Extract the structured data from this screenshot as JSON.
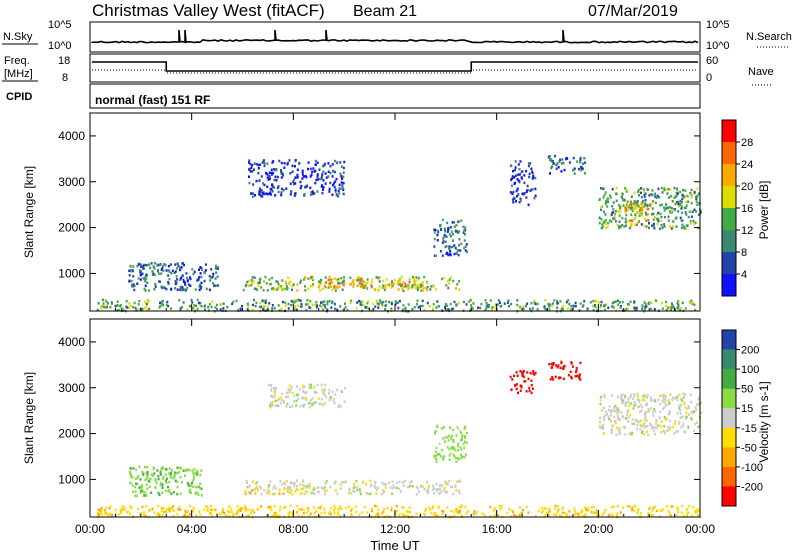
{
  "header": {
    "station": "Christmas Valley West (fitACF)",
    "beam": "Beam 21",
    "date": "07/Mar/2019"
  },
  "top_panels": {
    "nsky_label": "N.Sky",
    "nsky_ticks": [
      "10^5",
      "10^0"
    ],
    "nsearch_label": "N.Search",
    "nsearch_ticks": [
      "10^5",
      "10^0"
    ],
    "freq_label_1": "Freq.",
    "freq_label_2": "[MHz]",
    "freq_ticks": [
      "18",
      "8"
    ],
    "nave_label": "Nave",
    "nave_ticks": [
      "60",
      "0"
    ],
    "cpid_label": "CPID",
    "cpid_text": "normal (fast) 151 RF"
  },
  "power_colorbar": {
    "label": "Power [dB]",
    "ticks": [
      "28",
      "24",
      "20",
      "16",
      "12",
      "8",
      "4"
    ],
    "colors": [
      "#ff0000",
      "#ff6600",
      "#ffaa00",
      "#dddd00",
      "#44aa44",
      "#3a8a70",
      "#2244aa",
      "#1111ff"
    ]
  },
  "velocity_colorbar": {
    "label": "Velocity [m s-1]",
    "ticks": [
      "200",
      "100",
      "50",
      "15",
      "-15",
      "-50",
      "-100",
      "-200"
    ],
    "colors": [
      "#2244aa",
      "#3a8a70",
      "#44aa44",
      "#88dd44",
      "#cccccc",
      "#ffdd00",
      "#ffaa00",
      "#ff6600",
      "#ff0000"
    ]
  },
  "chart_data": [
    {
      "type": "heatmap",
      "title": "",
      "xlabel": "",
      "ylabel": "Slant Range [km]",
      "yticks": [
        "4000",
        "3000",
        "2000",
        "1000"
      ],
      "xticks": [
        "00:00",
        "04:00",
        "08:00",
        "12:00",
        "16:00",
        "20:00",
        "00:00"
      ],
      "xlim": [
        0,
        24
      ],
      "ylim": [
        180,
        4500
      ],
      "colorbar_label": "Power [dB]",
      "regions": [
        {
          "t0": 0.2,
          "t1": 24,
          "r0": 200,
          "r1": 450,
          "level": 3
        },
        {
          "t0": 1.5,
          "t1": 5.0,
          "r0": 650,
          "r1": 1250,
          "level": 2
        },
        {
          "t0": 6.0,
          "t1": 14.6,
          "r0": 650,
          "r1": 950,
          "level": 4
        },
        {
          "t0": 9.0,
          "t1": 13.0,
          "r0": 700,
          "r1": 900,
          "level": 5
        },
        {
          "t0": 13.5,
          "t1": 14.8,
          "r0": 1400,
          "r1": 2200,
          "level": 2
        },
        {
          "t0": 6.2,
          "t1": 10.0,
          "r0": 2700,
          "r1": 3500,
          "level": 1
        },
        {
          "t0": 16.5,
          "t1": 17.5,
          "r0": 2500,
          "r1": 3500,
          "level": 1
        },
        {
          "t0": 18.0,
          "t1": 19.5,
          "r0": 3200,
          "r1": 3600,
          "level": 2
        },
        {
          "t0": 20.0,
          "t1": 24.0,
          "r0": 2000,
          "r1": 2900,
          "level": 3
        },
        {
          "t0": 21.0,
          "t1": 22.0,
          "r0": 2100,
          "r1": 2600,
          "level": 5
        }
      ]
    },
    {
      "type": "heatmap",
      "title": "",
      "xlabel": "Time UT",
      "ylabel": "Slant Range [km]",
      "yticks": [
        "4000",
        "3000",
        "2000",
        "1000"
      ],
      "xticks": [
        "00:00",
        "04:00",
        "08:00",
        "12:00",
        "16:00",
        "20:00",
        "00:00"
      ],
      "xlim": [
        0,
        24
      ],
      "ylim": [
        180,
        4500
      ],
      "colorbar_label": "Velocity [m s-1]",
      "regions": [
        {
          "t0": 0.2,
          "t1": 24,
          "r0": 200,
          "r1": 450,
          "velocity": -40
        },
        {
          "t0": 1.5,
          "t1": 4.5,
          "r0": 650,
          "r1": 1300,
          "velocity": 40
        },
        {
          "t0": 6.0,
          "t1": 14.6,
          "r0": 700,
          "r1": 1000,
          "velocity": 0
        },
        {
          "t0": 6.0,
          "t1": 8.5,
          "r0": 700,
          "r1": 820,
          "velocity": -40
        },
        {
          "t0": 13.5,
          "t1": 14.8,
          "r0": 1400,
          "r1": 2200,
          "velocity": 30
        },
        {
          "t0": 7.0,
          "t1": 10.0,
          "r0": 2600,
          "r1": 3100,
          "velocity": 0
        },
        {
          "t0": 16.5,
          "t1": 17.5,
          "r0": 2900,
          "r1": 3400,
          "velocity": -250
        },
        {
          "t0": 18.0,
          "t1": 19.3,
          "r0": 3200,
          "r1": 3600,
          "velocity": -250
        },
        {
          "t0": 20.0,
          "t1": 24.0,
          "r0": 2000,
          "r1": 2900,
          "velocity": 0
        }
      ]
    }
  ]
}
